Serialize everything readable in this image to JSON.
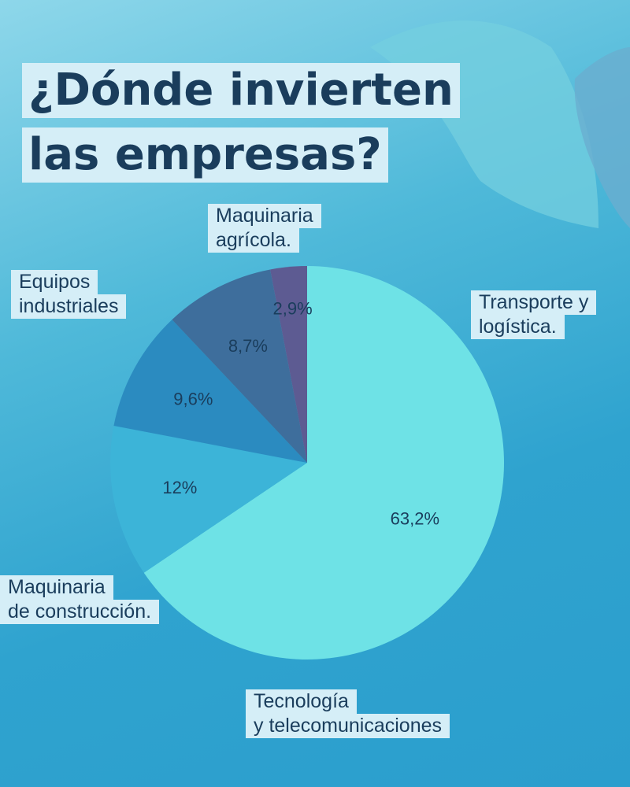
{
  "title": {
    "line1": "¿Dónde invierten",
    "line2": "las empresas?"
  },
  "colors": {
    "title_text": "#1a3d5c",
    "label_bg": "#d5eef7",
    "background": "#4fb9d9"
  },
  "chart_data": {
    "type": "pie",
    "title": "¿Dónde invierten las empresas?",
    "start_direction": "12 o'clock, clockwise",
    "slices": [
      {
        "label_lines": [
          "Transporte y",
          "logística."
        ],
        "value": 63.2,
        "value_label": "63,2%",
        "color": "#6ee2e6"
      },
      {
        "label_lines": [
          "Tecnología",
          "y telecomunicaciones"
        ],
        "value": 12,
        "value_label": "12%",
        "color": "#3cb4d8"
      },
      {
        "label_lines": [
          "Maquinaria",
          "de construcción."
        ],
        "value": 9.6,
        "value_label": "9,6%",
        "color": "#2b8bc0"
      },
      {
        "label_lines": [
          "Equipos",
          "industriales"
        ],
        "value": 8.7,
        "value_label": "8,7%",
        "color": "#3e6e9c"
      },
      {
        "label_lines": [
          "Maquinaria",
          "agrícola."
        ],
        "value": 2.9,
        "value_label": "2,9%",
        "color": "#5d5b92"
      }
    ]
  }
}
